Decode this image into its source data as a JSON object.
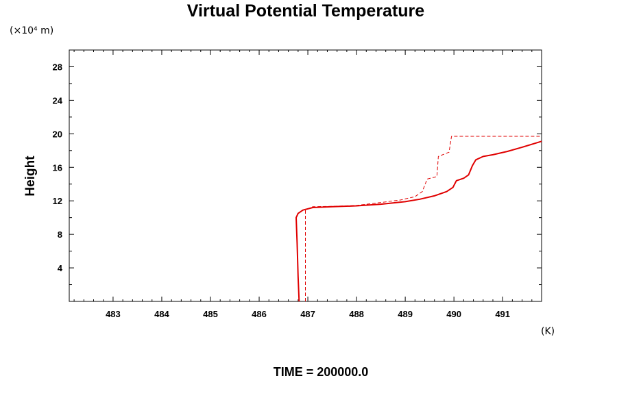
{
  "chart_data": {
    "type": "line",
    "title": "Virtual Potential Temperature",
    "ylabel": "Height",
    "yunit": "(×10⁴ m)",
    "xunit": "(K)",
    "footer": "TIME = 200000.0",
    "xlim": [
      482.1,
      491.8
    ],
    "ylim": [
      0,
      30
    ],
    "xticks": [
      483,
      484,
      485,
      486,
      487,
      488,
      489,
      490,
      491
    ],
    "yticks": [
      4,
      8,
      12,
      16,
      20,
      24,
      28
    ],
    "colors": {
      "series": "#e00000",
      "axis": "#000000"
    },
    "series": [
      {
        "style": "solid",
        "points": [
          [
            486.82,
            0
          ],
          [
            486.8,
            3
          ],
          [
            486.78,
            7
          ],
          [
            486.76,
            10
          ],
          [
            486.8,
            10.5
          ],
          [
            486.9,
            10.9
          ],
          [
            487.1,
            11.2
          ],
          [
            487.5,
            11.3
          ],
          [
            488.0,
            11.4
          ],
          [
            488.5,
            11.6
          ],
          [
            489.0,
            11.9
          ],
          [
            489.3,
            12.2
          ],
          [
            489.6,
            12.6
          ],
          [
            489.85,
            13.1
          ],
          [
            489.98,
            13.6
          ],
          [
            490.05,
            14.4
          ],
          [
            490.2,
            14.7
          ],
          [
            490.3,
            15.1
          ],
          [
            490.38,
            16.2
          ],
          [
            490.45,
            16.9
          ],
          [
            490.6,
            17.3
          ],
          [
            490.8,
            17.5
          ],
          [
            491.1,
            17.9
          ],
          [
            491.4,
            18.4
          ],
          [
            491.8,
            19.1
          ]
        ]
      },
      {
        "style": "dashed",
        "points": [
          [
            486.95,
            0
          ],
          [
            486.95,
            10.9
          ],
          [
            487.1,
            11.3
          ],
          [
            487.5,
            11.35
          ],
          [
            488.0,
            11.45
          ],
          [
            488.5,
            11.8
          ],
          [
            488.9,
            12.1
          ],
          [
            489.2,
            12.5
          ],
          [
            489.35,
            13.1
          ],
          [
            489.45,
            14.6
          ],
          [
            489.65,
            14.9
          ],
          [
            489.68,
            17.3
          ],
          [
            489.9,
            17.8
          ],
          [
            489.95,
            19.7
          ],
          [
            491.8,
            19.7
          ]
        ]
      }
    ]
  }
}
